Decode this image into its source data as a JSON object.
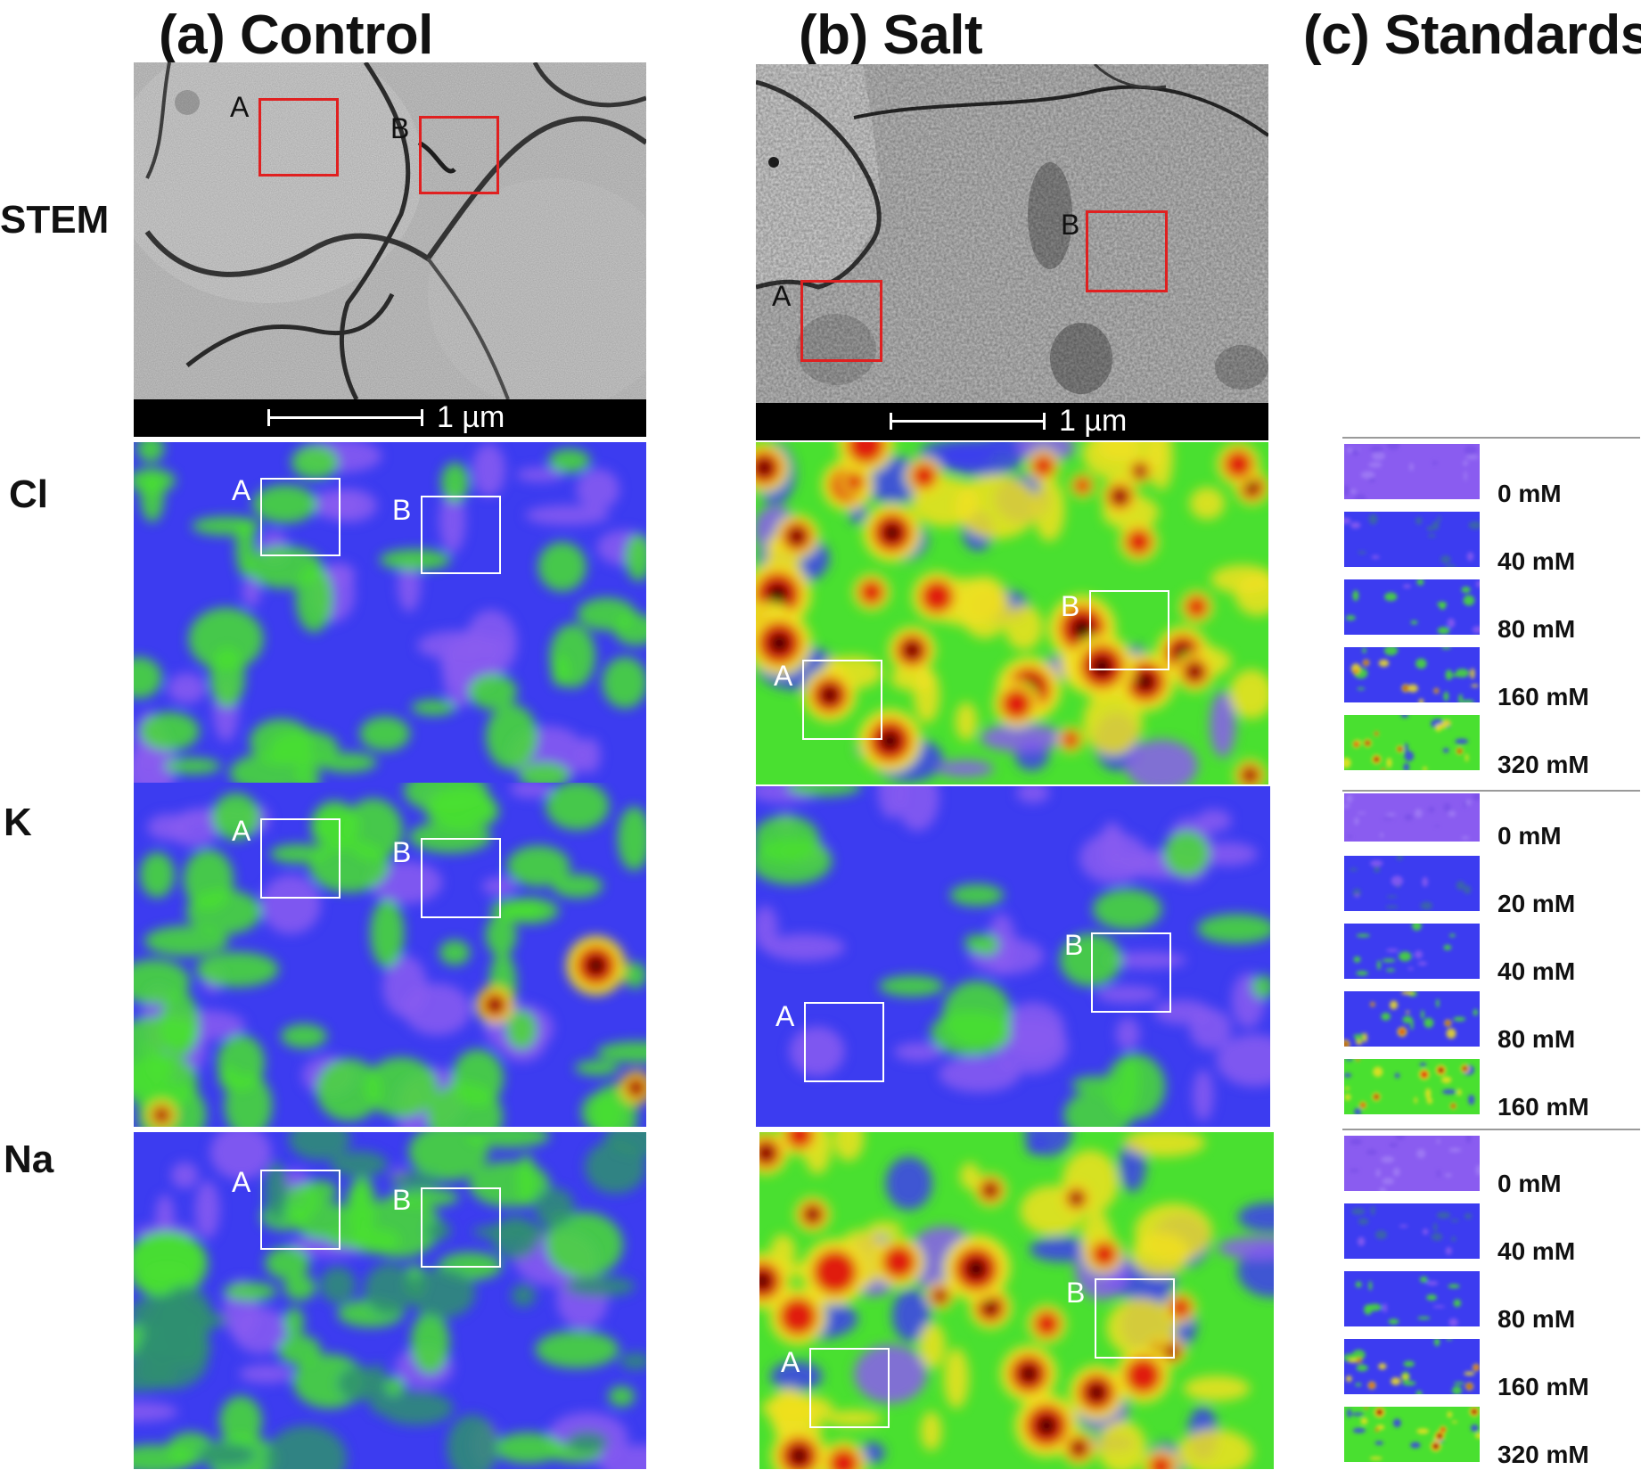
{
  "column_titles": [
    "(a) Control",
    "(b) Salt",
    "(c) Standards"
  ],
  "row_labels": [
    "STEM",
    "Cl",
    "K",
    "Na"
  ],
  "roi_labels": [
    "A",
    "B"
  ],
  "scale_bar": {
    "label": "1 µm"
  },
  "standards": {
    "Cl": [
      "0 mM",
      "40 mM",
      "80 mM",
      "160 mM",
      "320 mM"
    ],
    "K": [
      "0 mM",
      "20 mM",
      "40 mM",
      "80 mM",
      "160 mM"
    ],
    "Na": [
      "0 mM",
      "40 mM",
      "80 mM",
      "160 mM",
      "320 mM"
    ]
  },
  "colors": {
    "roi_stem": "#e02020",
    "roi_map": "#ffffff",
    "map_low": "#8a5cf0",
    "map_mid_low": "#3c3cf0",
    "map_mid": "#49e030",
    "map_high": "#f0e020",
    "map_peak": "#e01a0a",
    "map_max": "#1a0000"
  }
}
